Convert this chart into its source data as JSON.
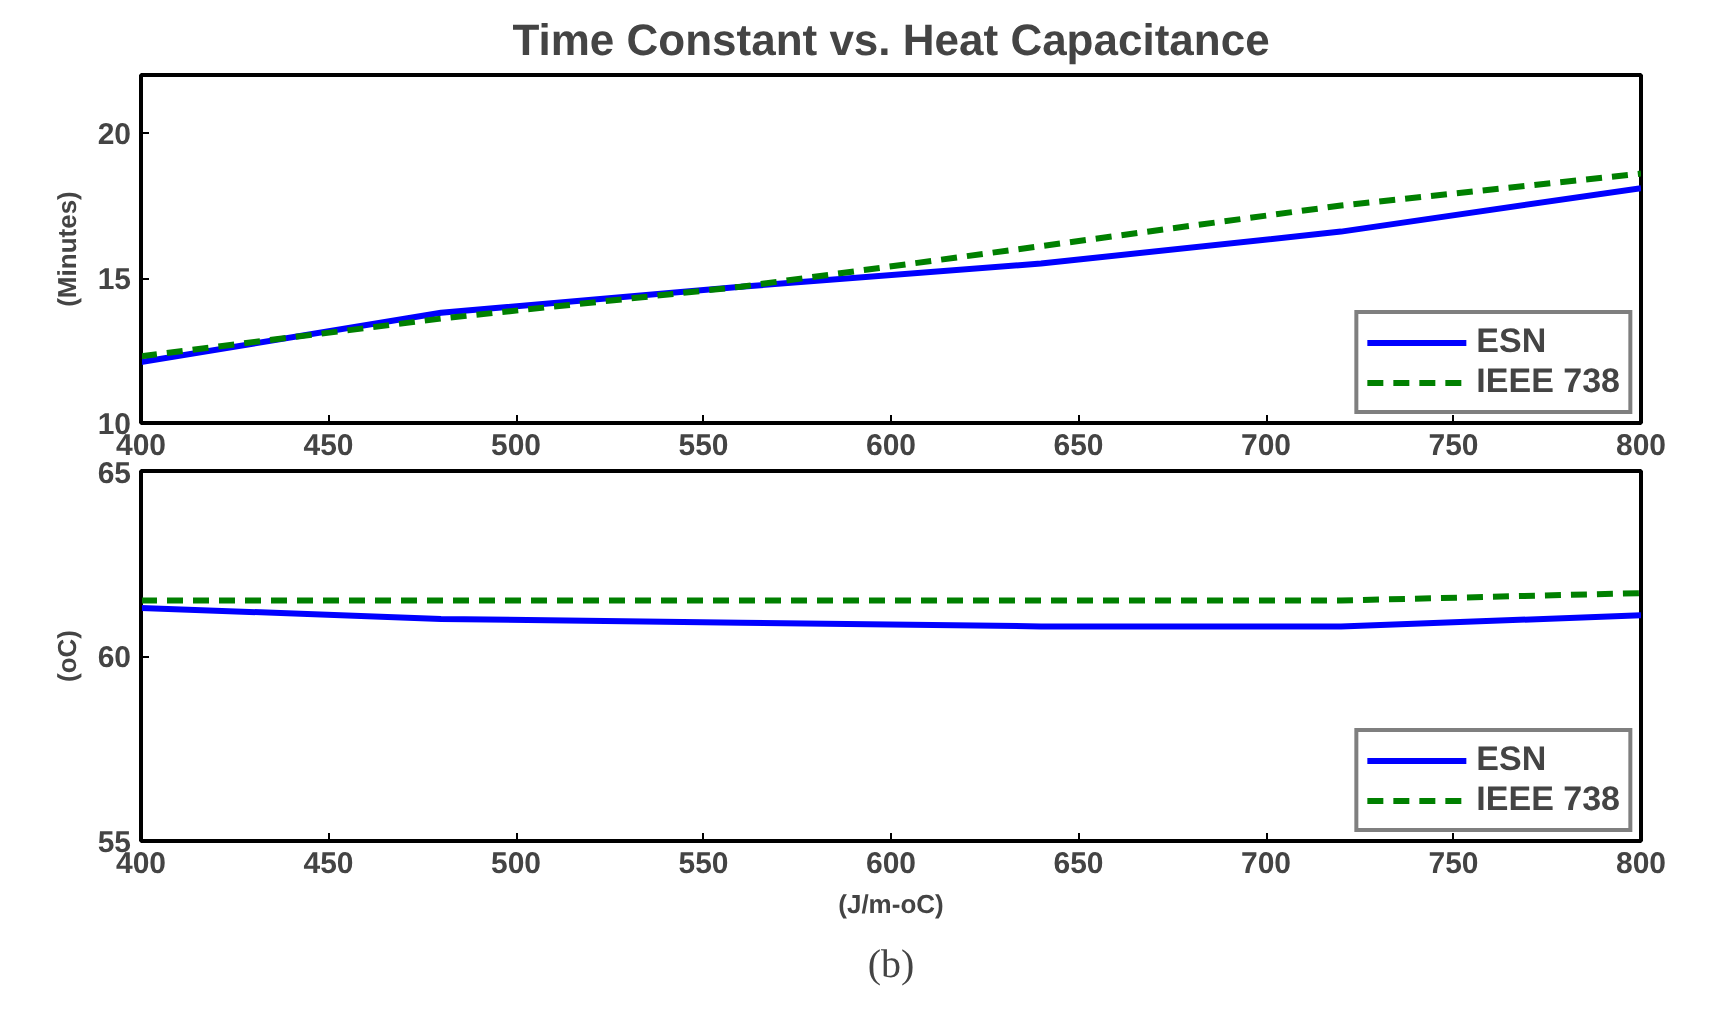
{
  "chart_data": [
    {
      "type": "line",
      "title": "Time Constant vs. Heat Capacitance",
      "ylabel": "(Minutes)",
      "x": [
        400,
        480,
        560,
        640,
        720,
        800
      ],
      "xlim": [
        400,
        800
      ],
      "xticks": [
        400,
        450,
        500,
        550,
        600,
        650,
        700,
        750,
        800
      ],
      "ylim": [
        10,
        22
      ],
      "yticks": [
        10,
        15,
        20
      ],
      "grid": false,
      "legend": "bottom right",
      "series": [
        {
          "name": "ESN",
          "color": "#0000ff",
          "line_style": "solid",
          "values": [
            12.1,
            13.8,
            14.7,
            15.5,
            16.6,
            18.1
          ]
        },
        {
          "name": "IEEE 738",
          "color": "#008000",
          "line_style": "dashed",
          "values": [
            12.3,
            13.6,
            14.7,
            16.1,
            17.5,
            18.6
          ]
        }
      ]
    },
    {
      "type": "line",
      "xlabel": "(J/m-oC)",
      "ylabel": "(oC)",
      "x": [
        400,
        480,
        560,
        640,
        720,
        800
      ],
      "xlim": [
        400,
        800
      ],
      "xticks": [
        400,
        450,
        500,
        550,
        600,
        650,
        700,
        750,
        800
      ],
      "ylim": [
        55,
        65
      ],
      "yticks": [
        55,
        60,
        65
      ],
      "grid": false,
      "legend": "bottom right",
      "annotations": [
        "(b)"
      ],
      "series": [
        {
          "name": "ESN",
          "color": "#0000ff",
          "line_style": "solid",
          "values": [
            61.3,
            61.0,
            60.9,
            60.8,
            60.8,
            61.1
          ]
        },
        {
          "name": "IEEE 738",
          "color": "#008000",
          "line_style": "dashed",
          "values": [
            61.5,
            61.5,
            61.5,
            61.5,
            61.5,
            61.7
          ]
        }
      ]
    }
  ]
}
